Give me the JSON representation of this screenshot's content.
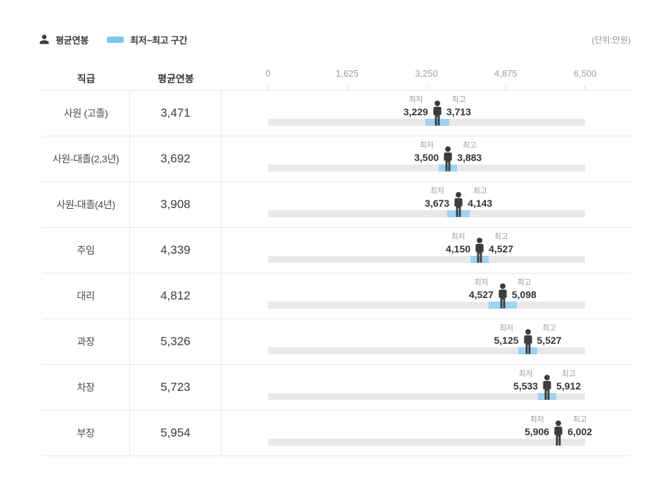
{
  "page": {
    "unit_note": "(단위:만원)"
  },
  "legend": {
    "avg_label": "평균연봉",
    "range_label": "최저~최고 구간"
  },
  "table_header": {
    "grade": "직급",
    "avg": "평균연봉"
  },
  "range_labels": {
    "min": "최저",
    "max": "최고"
  },
  "colors": {
    "range_bar": "#9ed3f2",
    "legend_swatch": "#7ec7ec",
    "track": "#e9e9e9",
    "person": "#3c3c3c",
    "border": "#e7e7e7",
    "text_gray": "#9ba0a5"
  },
  "chart_data": {
    "type": "bar",
    "subtype": "range-bar-with-average-marker",
    "unit": "만원",
    "legend": [
      "평균연봉",
      "최저~최고 구간"
    ],
    "categories": [
      "사원 (고졸)",
      "사원-대졸(2,3년)",
      "사원-대졸(4년)",
      "주임",
      "대리",
      "과장",
      "차장",
      "부장"
    ],
    "series": [
      {
        "name": "평균연봉",
        "values": [
          3471,
          3692,
          3908,
          4339,
          4812,
          5326,
          5723,
          5954
        ]
      },
      {
        "name": "최저",
        "values": [
          3229,
          3500,
          3673,
          4150,
          4527,
          5125,
          5533,
          5906
        ]
      },
      {
        "name": "최고",
        "values": [
          3713,
          3883,
          4143,
          4527,
          5098,
          5527,
          5912,
          6002
        ]
      }
    ],
    "xlim": [
      0,
      6500
    ],
    "x_ticks": [
      0,
      1625,
      3250,
      4875,
      6500
    ],
    "grid": false,
    "legend_position": "top-left"
  }
}
